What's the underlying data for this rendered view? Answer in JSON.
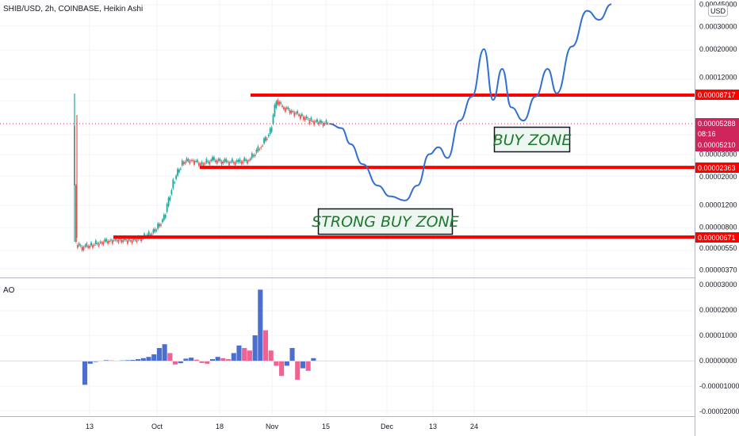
{
  "header": {
    "title": "SHIB/USD, 2h, COINBASE, Heikin Ashi",
    "currency_badge": "USD"
  },
  "indicator_label": "AO",
  "colors": {
    "up": "#26a69a",
    "down": "#ef5350",
    "hline": "#ff0000",
    "projection": "#2f6fd6",
    "ao_up": "#4a6fd0",
    "ao_down": "#f06292",
    "zone_text": "#1b7a2e",
    "price_label_bg": "#d0245c"
  },
  "chart_data": [
    {
      "type": "line",
      "title": "SHIB/USD, 2h, COINBASE, Heikin Ashi",
      "y_scale": "log",
      "y_ticks": [
        "0.00045000",
        "0.00030000",
        "0.00020000",
        "0.00012000",
        "0.00008717",
        "0.00005288",
        "0.00005210",
        "0.00003000",
        "0.00002363",
        "0.00002000",
        "0.00001200",
        "0.00000800",
        "0.00000671",
        "0.00000550",
        "0.00000370"
      ],
      "x_ticks": [
        "13",
        "Oct",
        "18",
        "Nov",
        "15",
        "Dec",
        "13",
        "24"
      ],
      "horizontal_lines": [
        {
          "label": "0.00008717",
          "value": 8.717e-05
        },
        {
          "label": "0.00002363",
          "value": 2.363e-05
        },
        {
          "label": "0.00000671",
          "value": 6.71e-06
        }
      ],
      "current_price": {
        "value": "0.00005288",
        "countdown": "08:16",
        "secondary": "0.00005210"
      },
      "annotations": [
        "BUY ZONE",
        "STRONG BUY ZONE"
      ],
      "price_series": [
        [
          0,
          5e-05
        ],
        [
          1,
          5.8e-06
        ],
        [
          3,
          5.6e-06
        ],
        [
          6,
          5.8e-06
        ],
        [
          9,
          6.1e-06
        ],
        [
          12,
          6.3e-06
        ],
        [
          15,
          6.4e-06
        ],
        [
          18,
          6.3e-06
        ],
        [
          21,
          6.4e-06
        ],
        [
          24,
          6.8e-06
        ],
        [
          27,
          7.5e-06
        ],
        [
          30,
          9.5e-06
        ],
        [
          33,
          1.8e-05
        ],
        [
          36,
          2.6e-05
        ],
        [
          39,
          2.7e-05
        ],
        [
          42,
          2.5e-05
        ],
        [
          46,
          2.7e-05
        ],
        [
          50,
          2.6e-05
        ],
        [
          54,
          2.6e-05
        ],
        [
          58,
          2.7e-05
        ],
        [
          62,
          3.5e-05
        ],
        [
          65,
          4.5e-05
        ],
        [
          67,
          8e-05
        ],
        [
          69,
          7e-05
        ],
        [
          72,
          6.5e-05
        ],
        [
          75,
          6e-05
        ],
        [
          78,
          5.5e-05
        ],
        [
          81,
          5.3e-05
        ],
        [
          84,
          5.2e-05
        ]
      ],
      "projection_series": [
        [
          84,
          5.2e-05
        ],
        [
          88,
          4.8e-05
        ],
        [
          91,
          3.6e-05
        ],
        [
          95,
          2.5e-05
        ],
        [
          100,
          1.7e-05
        ],
        [
          104,
          1.4e-05
        ],
        [
          109,
          1.3e-05
        ],
        [
          113,
          1.7e-05
        ],
        [
          117,
          3e-05
        ],
        [
          120,
          3.4e-05
        ],
        [
          123,
          2.8e-05
        ],
        [
          127,
          5.5e-05
        ],
        [
          131,
          8.5e-05
        ],
        [
          135,
          0.0002
        ],
        [
          138,
          8e-05
        ],
        [
          141,
          0.00014
        ],
        [
          144,
          7e-05
        ],
        [
          148,
          5.5e-05
        ],
        [
          152,
          8.5e-05
        ],
        [
          156,
          0.00014
        ],
        [
          159,
          9e-05
        ],
        [
          164,
          0.00021
        ],
        [
          169,
          0.0004
        ],
        [
          173,
          0.00034
        ],
        [
          177,
          0.00045
        ]
      ],
      "ao": {
        "y_ticks": [
          "0.00003000",
          "0.00002000",
          "0.00001000",
          "0.00000000",
          "-0.00001000",
          "-0.00002000"
        ],
        "values": [
          -9.5e-06,
          -1.2e-06,
          -5e-07,
          -3e-07,
          2e-07,
          1e-07,
          -1e-07,
          1e-07,
          2e-07,
          3e-07,
          6e-07,
          1e-06,
          1.5e-06,
          2.5e-06,
          5e-06,
          6.5e-06,
          3e-06,
          -1.5e-06,
          -1e-06,
          8e-07,
          1.2e-06,
          4e-07,
          -9e-07,
          -1.2e-06,
          6e-07,
          1.5e-06,
          1e-06,
          6e-07,
          3e-06,
          6e-06,
          5e-06,
          4e-06,
          1e-05,
          2.8e-05,
          1.2e-05,
          4e-06,
          -2e-06,
          -6e-06,
          -2e-06,
          5e-06,
          -7.5e-06,
          -3e-06,
          -4e-06,
          1e-06
        ]
      }
    }
  ]
}
